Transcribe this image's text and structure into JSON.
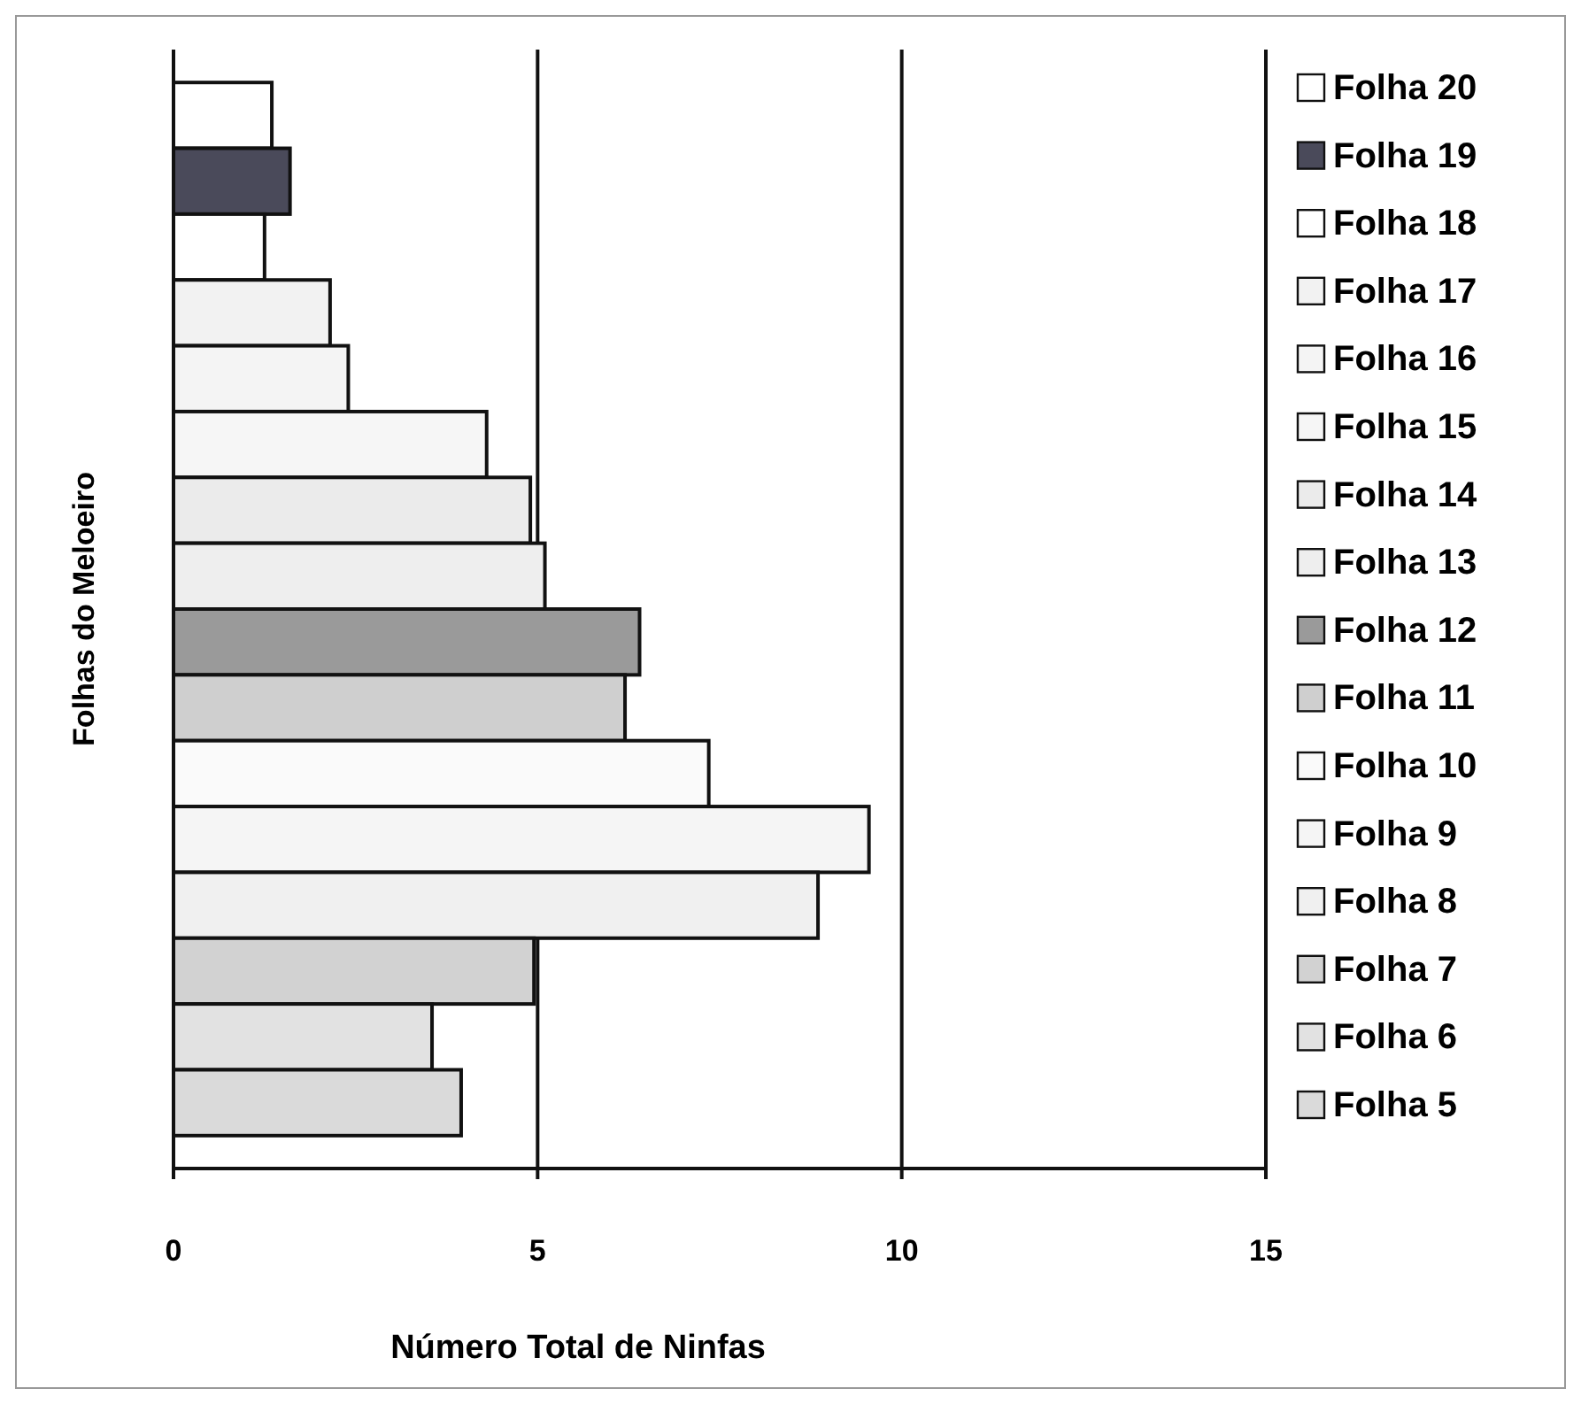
{
  "chart_data": {
    "type": "bar",
    "orientation": "horizontal",
    "xlabel": "Número Total de Ninfas",
    "ylabel": "Folhas do Meloeiro",
    "categories": [
      null,
      null,
      null,
      null,
      null,
      null,
      null,
      null,
      null,
      null,
      null,
      null,
      null,
      null,
      null,
      null
    ],
    "series": [
      {
        "name": "Folha 20",
        "color": "#ffffff",
        "values": [
          1.35,
          null,
          null,
          null,
          null,
          null,
          null,
          null,
          null,
          null,
          null,
          null,
          null,
          null,
          null,
          null
        ]
      },
      {
        "name": "Folha 19",
        "color": "#4a4a5a",
        "values": [
          null,
          1.6,
          null,
          null,
          null,
          null,
          null,
          null,
          null,
          null,
          null,
          null,
          null,
          null,
          null,
          null
        ]
      },
      {
        "name": "Folha 18",
        "color": "#ffffff",
        "values": [
          null,
          null,
          1.25,
          null,
          null,
          null,
          null,
          null,
          null,
          null,
          null,
          null,
          null,
          null,
          null,
          null
        ]
      },
      {
        "name": "Folha 17",
        "color": "#f2f2f2",
        "values": [
          null,
          null,
          null,
          2.15,
          null,
          null,
          null,
          null,
          null,
          null,
          null,
          null,
          null,
          null,
          null,
          null
        ]
      },
      {
        "name": "Folha 16",
        "color": "#f4f4f4",
        "values": [
          null,
          null,
          null,
          null,
          2.4,
          null,
          null,
          null,
          null,
          null,
          null,
          null,
          null,
          null,
          null,
          null
        ]
      },
      {
        "name": "Folha 15",
        "color": "#f6f6f6",
        "values": [
          null,
          null,
          null,
          null,
          null,
          4.3,
          null,
          null,
          null,
          null,
          null,
          null,
          null,
          null,
          null,
          null
        ]
      },
      {
        "name": "Folha 14",
        "color": "#ebebeb",
        "values": [
          null,
          null,
          null,
          null,
          null,
          null,
          4.9,
          null,
          null,
          null,
          null,
          null,
          null,
          null,
          null,
          null
        ]
      },
      {
        "name": "Folha 13",
        "color": "#eeeeee",
        "values": [
          null,
          null,
          null,
          null,
          null,
          null,
          null,
          5.1,
          null,
          null,
          null,
          null,
          null,
          null,
          null,
          null
        ]
      },
      {
        "name": "Folha 12",
        "color": "#9a9a9a",
        "values": [
          null,
          null,
          null,
          null,
          null,
          null,
          null,
          null,
          6.4,
          null,
          null,
          null,
          null,
          null,
          null,
          null
        ]
      },
      {
        "name": "Folha 11",
        "color": "#cfcfcf",
        "values": [
          null,
          null,
          null,
          null,
          null,
          null,
          null,
          null,
          null,
          6.2,
          null,
          null,
          null,
          null,
          null,
          null
        ]
      },
      {
        "name": "Folha 10",
        "color": "#fafafa",
        "values": [
          null,
          null,
          null,
          null,
          null,
          null,
          null,
          null,
          null,
          null,
          7.35,
          null,
          null,
          null,
          null,
          null
        ]
      },
      {
        "name": "Folha 9",
        "color": "#f5f5f5",
        "values": [
          null,
          null,
          null,
          null,
          null,
          null,
          null,
          null,
          null,
          null,
          null,
          9.55,
          null,
          null,
          null,
          null
        ]
      },
      {
        "name": "Folha 8",
        "color": "#f0f0f0",
        "values": [
          null,
          null,
          null,
          null,
          null,
          null,
          null,
          null,
          null,
          null,
          null,
          null,
          8.85,
          null,
          null,
          null
        ]
      },
      {
        "name": "Folha 7",
        "color": "#d2d2d2",
        "values": [
          null,
          null,
          null,
          null,
          null,
          null,
          null,
          null,
          null,
          null,
          null,
          null,
          null,
          4.95,
          null,
          null
        ]
      },
      {
        "name": "Folha 6",
        "color": "#e2e2e2",
        "values": [
          null,
          null,
          null,
          null,
          null,
          null,
          null,
          null,
          null,
          null,
          null,
          null,
          null,
          null,
          3.55,
          null
        ]
      },
      {
        "name": "Folha 5",
        "color": "#dadada",
        "values": [
          null,
          null,
          null,
          null,
          null,
          null,
          null,
          null,
          null,
          null,
          null,
          null,
          null,
          null,
          null,
          3.95
        ]
      }
    ],
    "xlim": [
      0,
      15
    ],
    "xticks": [
      0,
      5,
      10,
      15
    ],
    "grid": "x",
    "legend": "right",
    "tick_labels": "x"
  }
}
